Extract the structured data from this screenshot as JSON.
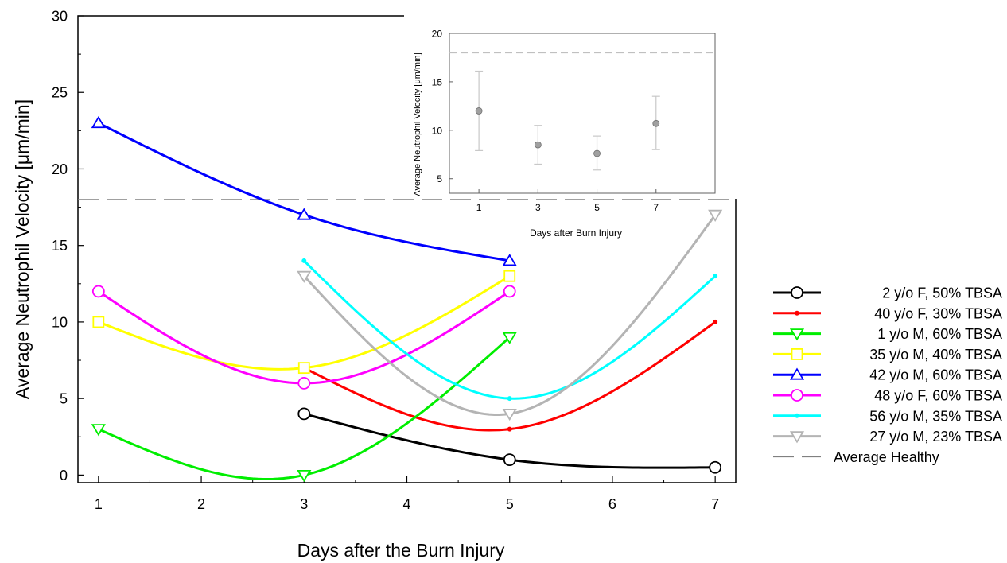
{
  "chart_data": [
    {
      "type": "line",
      "xlabel": "Days after the Burn Injury",
      "ylabel": "Average Neutrophil Velocity [μm/min]",
      "xlim": [
        0.8,
        7.2
      ],
      "ylim": [
        -0.5,
        30
      ],
      "xticks": [
        1,
        2,
        3,
        4,
        5,
        6,
        7
      ],
      "yticks": [
        0,
        5,
        10,
        15,
        20,
        25,
        30
      ],
      "grid": false,
      "legend_position": "right",
      "reference_line": {
        "name": "Average Healthy",
        "y": 18,
        "color": "#808080",
        "style": "dashed"
      },
      "series": [
        {
          "name": "2 y/o F,  50% TBSA",
          "color": "#000000",
          "marker": "circle",
          "x": [
            3,
            5,
            7
          ],
          "y": [
            4,
            1,
            0.5
          ]
        },
        {
          "name": "40 y/o F,  30% TBSA",
          "color": "#ff0000",
          "marker": "dot",
          "x": [
            3,
            5,
            7
          ],
          "y": [
            7,
            3,
            10
          ]
        },
        {
          "name": "1 y/o M,  60% TBSA",
          "color": "#00ee00",
          "marker": "triangle-down",
          "x": [
            1,
            3,
            5
          ],
          "y": [
            3,
            0,
            9
          ]
        },
        {
          "name": "35 y/o M,  40% TBSA",
          "color": "#ffff00",
          "marker": "square",
          "x": [
            1,
            3,
            5
          ],
          "y": [
            10,
            7,
            13
          ]
        },
        {
          "name": "42 y/o M,  60% TBSA",
          "color": "#0000ff",
          "marker": "triangle-up",
          "x": [
            1,
            3,
            5
          ],
          "y": [
            23,
            17,
            14
          ]
        },
        {
          "name": "48 y/o F,  60% TBSA",
          "color": "#ff00ff",
          "marker": "circle",
          "x": [
            1,
            3,
            5
          ],
          "y": [
            12,
            6,
            12
          ]
        },
        {
          "name": "56 y/o M,  35% TBSA",
          "color": "#00ffff",
          "marker": "dot",
          "x": [
            3,
            5,
            7
          ],
          "y": [
            14,
            5,
            13
          ]
        },
        {
          "name": "27 y/o M,  23% TBSA",
          "color": "#b4b4b4",
          "marker": "triangle-down",
          "x": [
            3,
            5,
            7
          ],
          "y": [
            13,
            4,
            17
          ]
        }
      ]
    },
    {
      "type": "scatter",
      "xlabel": "Days after Burn Injury",
      "ylabel": "Average Neutrophil Velocity [μm/min]",
      "xlim": [
        0,
        9
      ],
      "ylim": [
        3.5,
        20
      ],
      "xticks": [
        1,
        3,
        5,
        7
      ],
      "yticks": [
        5,
        10,
        15,
        20
      ],
      "grid": false,
      "reference_line": {
        "y": 18,
        "color": "#c0c0c0",
        "style": "dashed"
      },
      "series": [
        {
          "x": [
            1,
            3,
            5,
            7
          ],
          "y": [
            12,
            8.5,
            7.6,
            10.7
          ],
          "error_low": [
            7.9,
            6.5,
            5.9,
            8.0
          ],
          "error_high": [
            16.1,
            10.5,
            9.4,
            13.5
          ],
          "color": "#a0a0a0"
        }
      ]
    }
  ]
}
